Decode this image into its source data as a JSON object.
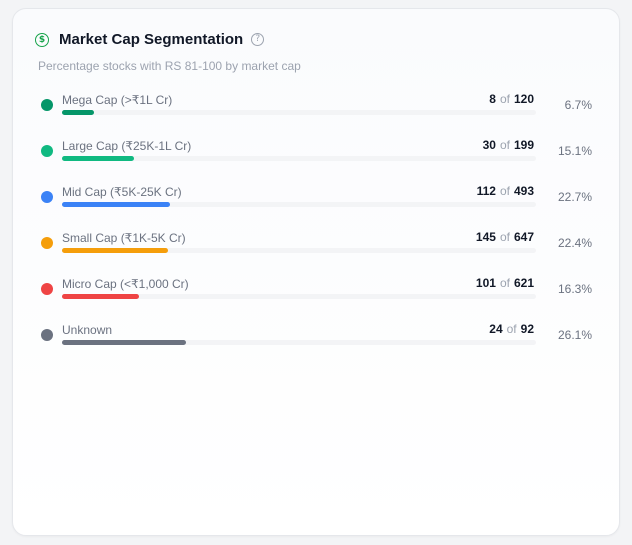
{
  "card": {
    "title": "Market Cap Segmentation",
    "subtitle": "Percentage stocks with RS 81-100 by market cap",
    "title_icon": "dollar-circle-icon",
    "help_icon": "question-circle-icon"
  },
  "of_label": "of",
  "segments": [
    {
      "label": "Mega Cap (>₹1L Cr)",
      "count": "8",
      "total": "120",
      "percent": "6.7%",
      "bar_fraction": 0.067,
      "color": "#059669"
    },
    {
      "label": "Large Cap (₹25K-1L Cr)",
      "count": "30",
      "total": "199",
      "percent": "15.1%",
      "bar_fraction": 0.151,
      "color": "#10b981"
    },
    {
      "label": "Mid Cap (₹5K-25K Cr)",
      "count": "112",
      "total": "493",
      "percent": "22.7%",
      "bar_fraction": 0.227,
      "color": "#3b82f6"
    },
    {
      "label": "Small Cap (₹1K-5K Cr)",
      "count": "145",
      "total": "647",
      "percent": "22.4%",
      "bar_fraction": 0.224,
      "color": "#f59e0b"
    },
    {
      "label": "Micro Cap (<₹1,000 Cr)",
      "count": "101",
      "total": "621",
      "percent": "16.3%",
      "bar_fraction": 0.163,
      "color": "#ef4444"
    },
    {
      "label": "Unknown",
      "count": "24",
      "total": "92",
      "percent": "26.1%",
      "bar_fraction": 0.261,
      "color": "#6b7280"
    }
  ]
}
